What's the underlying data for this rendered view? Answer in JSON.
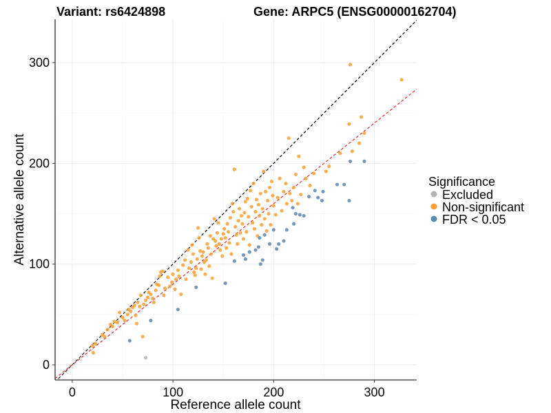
{
  "chart_data": {
    "type": "scatter",
    "title_left": "Variant: rs6424898",
    "title_right": "Gene: ARPC5 (ENSG00000162704)",
    "xlabel": "Reference allele count",
    "ylabel": "Alternative allele count",
    "xlim": [
      -17,
      342
    ],
    "ylim": [
      -15,
      343
    ],
    "xticks": [
      0,
      100,
      200,
      300
    ],
    "yticks": [
      0,
      100,
      200,
      300
    ],
    "grid": true,
    "legend": {
      "title": "Significance",
      "placement": "right",
      "entries": [
        {
          "key": "excluded",
          "label": "Excluded"
        },
        {
          "key": "nonsig",
          "label": "Non-significant"
        },
        {
          "key": "fdr",
          "label": "FDR < 0.05"
        }
      ]
    },
    "colors": {
      "excluded": "#b4b4b4",
      "nonsig": "#f8a033",
      "fdr": "#5f86b1"
    },
    "reference_lines": [
      {
        "slope": 1.0,
        "intercept": 0,
        "color": "#000000",
        "style": "dashed"
      },
      {
        "slope": 0.8,
        "intercept": 0,
        "color": "#e8211f",
        "style": "dashed"
      }
    ],
    "series": [
      {
        "key": "excluded",
        "name": "Excluded",
        "points": [
          [
            73,
            7
          ]
        ]
      },
      {
        "key": "fdr",
        "name": "FDR < 0.05",
        "points": [
          [
            57,
            24
          ],
          [
            78,
            44
          ],
          [
            105,
            55
          ],
          [
            123,
            77
          ],
          [
            152,
            81
          ],
          [
            161,
            103
          ],
          [
            170,
            109
          ],
          [
            172,
            105
          ],
          [
            176,
            112
          ],
          [
            182,
            114
          ],
          [
            185,
            117
          ],
          [
            187,
            100
          ],
          [
            189,
            104
          ],
          [
            186,
            126
          ],
          [
            191,
            129
          ],
          [
            196,
            120
          ],
          [
            200,
            134
          ],
          [
            203,
            115
          ],
          [
            205,
            120
          ],
          [
            210,
            123
          ],
          [
            213,
            134
          ],
          [
            220,
            140
          ],
          [
            219,
            156
          ],
          [
            222,
            150
          ],
          [
            226,
            149
          ],
          [
            230,
            148
          ],
          [
            235,
            167
          ],
          [
            241,
            173
          ],
          [
            244,
            166
          ],
          [
            248,
            163
          ],
          [
            249,
            172
          ],
          [
            263,
            179
          ],
          [
            270,
            179
          ],
          [
            275,
            163
          ],
          [
            276,
            202
          ],
          [
            290,
            202
          ]
        ]
      },
      {
        "key": "nonsig",
        "name": "Non-significant",
        "points": [
          [
            20,
            19
          ],
          [
            21,
            12
          ],
          [
            23,
            21
          ],
          [
            30,
            30
          ],
          [
            32,
            28
          ],
          [
            35,
            35
          ],
          [
            38,
            40
          ],
          [
            40,
            38
          ],
          [
            42,
            43
          ],
          [
            45,
            42
          ],
          [
            47,
            52
          ],
          [
            50,
            47
          ],
          [
            52,
            44
          ],
          [
            55,
            50
          ],
          [
            56,
            55
          ],
          [
            58,
            53
          ],
          [
            60,
            57
          ],
          [
            62,
            59
          ],
          [
            63,
            49
          ],
          [
            64,
            41
          ],
          [
            65,
            62
          ],
          [
            67,
            58
          ],
          [
            68,
            69
          ],
          [
            70,
            28
          ],
          [
            71,
            60
          ],
          [
            73,
            64
          ],
          [
            75,
            67
          ],
          [
            76,
            72
          ],
          [
            78,
            70
          ],
          [
            80,
            66
          ],
          [
            81,
            62
          ],
          [
            83,
            74
          ],
          [
            84,
            80
          ],
          [
            86,
            79
          ],
          [
            87,
            88
          ],
          [
            88,
            92
          ],
          [
            90,
            93
          ],
          [
            91,
            69
          ],
          [
            92,
            76
          ],
          [
            95,
            87
          ],
          [
            97,
            78
          ],
          [
            99,
            82
          ],
          [
            100,
            90
          ],
          [
            102,
            75
          ],
          [
            103,
            85
          ],
          [
            105,
            94
          ],
          [
            106,
            88
          ],
          [
            108,
            70
          ],
          [
            110,
            99
          ],
          [
            112,
            104
          ],
          [
            113,
            85
          ],
          [
            115,
            114
          ],
          [
            116,
            96
          ],
          [
            118,
            102
          ],
          [
            119,
            119
          ],
          [
            120,
            110
          ],
          [
            121,
            92
          ],
          [
            122,
            89
          ],
          [
            123,
            96
          ],
          [
            124,
            105
          ],
          [
            125,
            136
          ],
          [
            126,
            126
          ],
          [
            127,
            113
          ],
          [
            128,
            95
          ],
          [
            129,
            108
          ],
          [
            130,
            112
          ],
          [
            131,
            102
          ],
          [
            132,
            90
          ],
          [
            133,
            104
          ],
          [
            134,
            120
          ],
          [
            135,
            116
          ],
          [
            136,
            98
          ],
          [
            137,
            128
          ],
          [
            138,
            110
          ],
          [
            139,
            86
          ],
          [
            140,
            125
          ],
          [
            141,
            145
          ],
          [
            142,
            123
          ],
          [
            143,
            118
          ],
          [
            144,
            131
          ],
          [
            145,
            141
          ],
          [
            146,
            120
          ],
          [
            147,
            114
          ],
          [
            148,
            125
          ],
          [
            149,
            108
          ],
          [
            150,
            130
          ],
          [
            151,
            135
          ],
          [
            152,
            126
          ],
          [
            153,
            116
          ],
          [
            154,
            140
          ],
          [
            155,
            132
          ],
          [
            156,
            121
          ],
          [
            157,
            146
          ],
          [
            158,
            110
          ],
          [
            159,
            160
          ],
          [
            160,
            152
          ],
          [
            161,
            194
          ],
          [
            162,
            137
          ],
          [
            163,
            129
          ],
          [
            164,
            120
          ],
          [
            165,
            143
          ],
          [
            166,
            155
          ],
          [
            167,
            131
          ],
          [
            168,
            148
          ],
          [
            169,
            140
          ],
          [
            170,
            125
          ],
          [
            171,
            151
          ],
          [
            172,
            162
          ],
          [
            173,
            132
          ],
          [
            174,
            165
          ],
          [
            175,
            147
          ],
          [
            176,
            119
          ],
          [
            177,
            173
          ],
          [
            178,
            157
          ],
          [
            179,
            141
          ],
          [
            180,
            180
          ],
          [
            181,
            135
          ],
          [
            182,
            152
          ],
          [
            183,
            164
          ],
          [
            184,
            128
          ],
          [
            185,
            159
          ],
          [
            186,
            148
          ],
          [
            187,
            170
          ],
          [
            188,
            139
          ],
          [
            189,
            155
          ],
          [
            190,
            192
          ],
          [
            191,
            145
          ],
          [
            192,
            172
          ],
          [
            193,
            133
          ],
          [
            194,
            163
          ],
          [
            195,
            150
          ],
          [
            196,
            176
          ],
          [
            197,
            139
          ],
          [
            198,
            182
          ],
          [
            199,
            168
          ],
          [
            200,
            158
          ],
          [
            202,
            149
          ],
          [
            204,
            166
          ],
          [
            206,
            185
          ],
          [
            208,
            153
          ],
          [
            210,
            172
          ],
          [
            212,
            180
          ],
          [
            213,
            160
          ],
          [
            215,
            225
          ],
          [
            216,
            170
          ],
          [
            218,
            163
          ],
          [
            220,
            176
          ],
          [
            222,
            189
          ],
          [
            224,
            160
          ],
          [
            225,
            207
          ],
          [
            227,
            169
          ],
          [
            230,
            196
          ],
          [
            232,
            185
          ],
          [
            236,
            178
          ],
          [
            240,
            190
          ],
          [
            252,
            192
          ],
          [
            255,
            197
          ],
          [
            266,
            210
          ],
          [
            275,
            239
          ],
          [
            276,
            298
          ],
          [
            278,
            212
          ],
          [
            285,
            220
          ],
          [
            287,
            246
          ],
          [
            290,
            230
          ],
          [
            327,
            283
          ]
        ]
      }
    ]
  }
}
